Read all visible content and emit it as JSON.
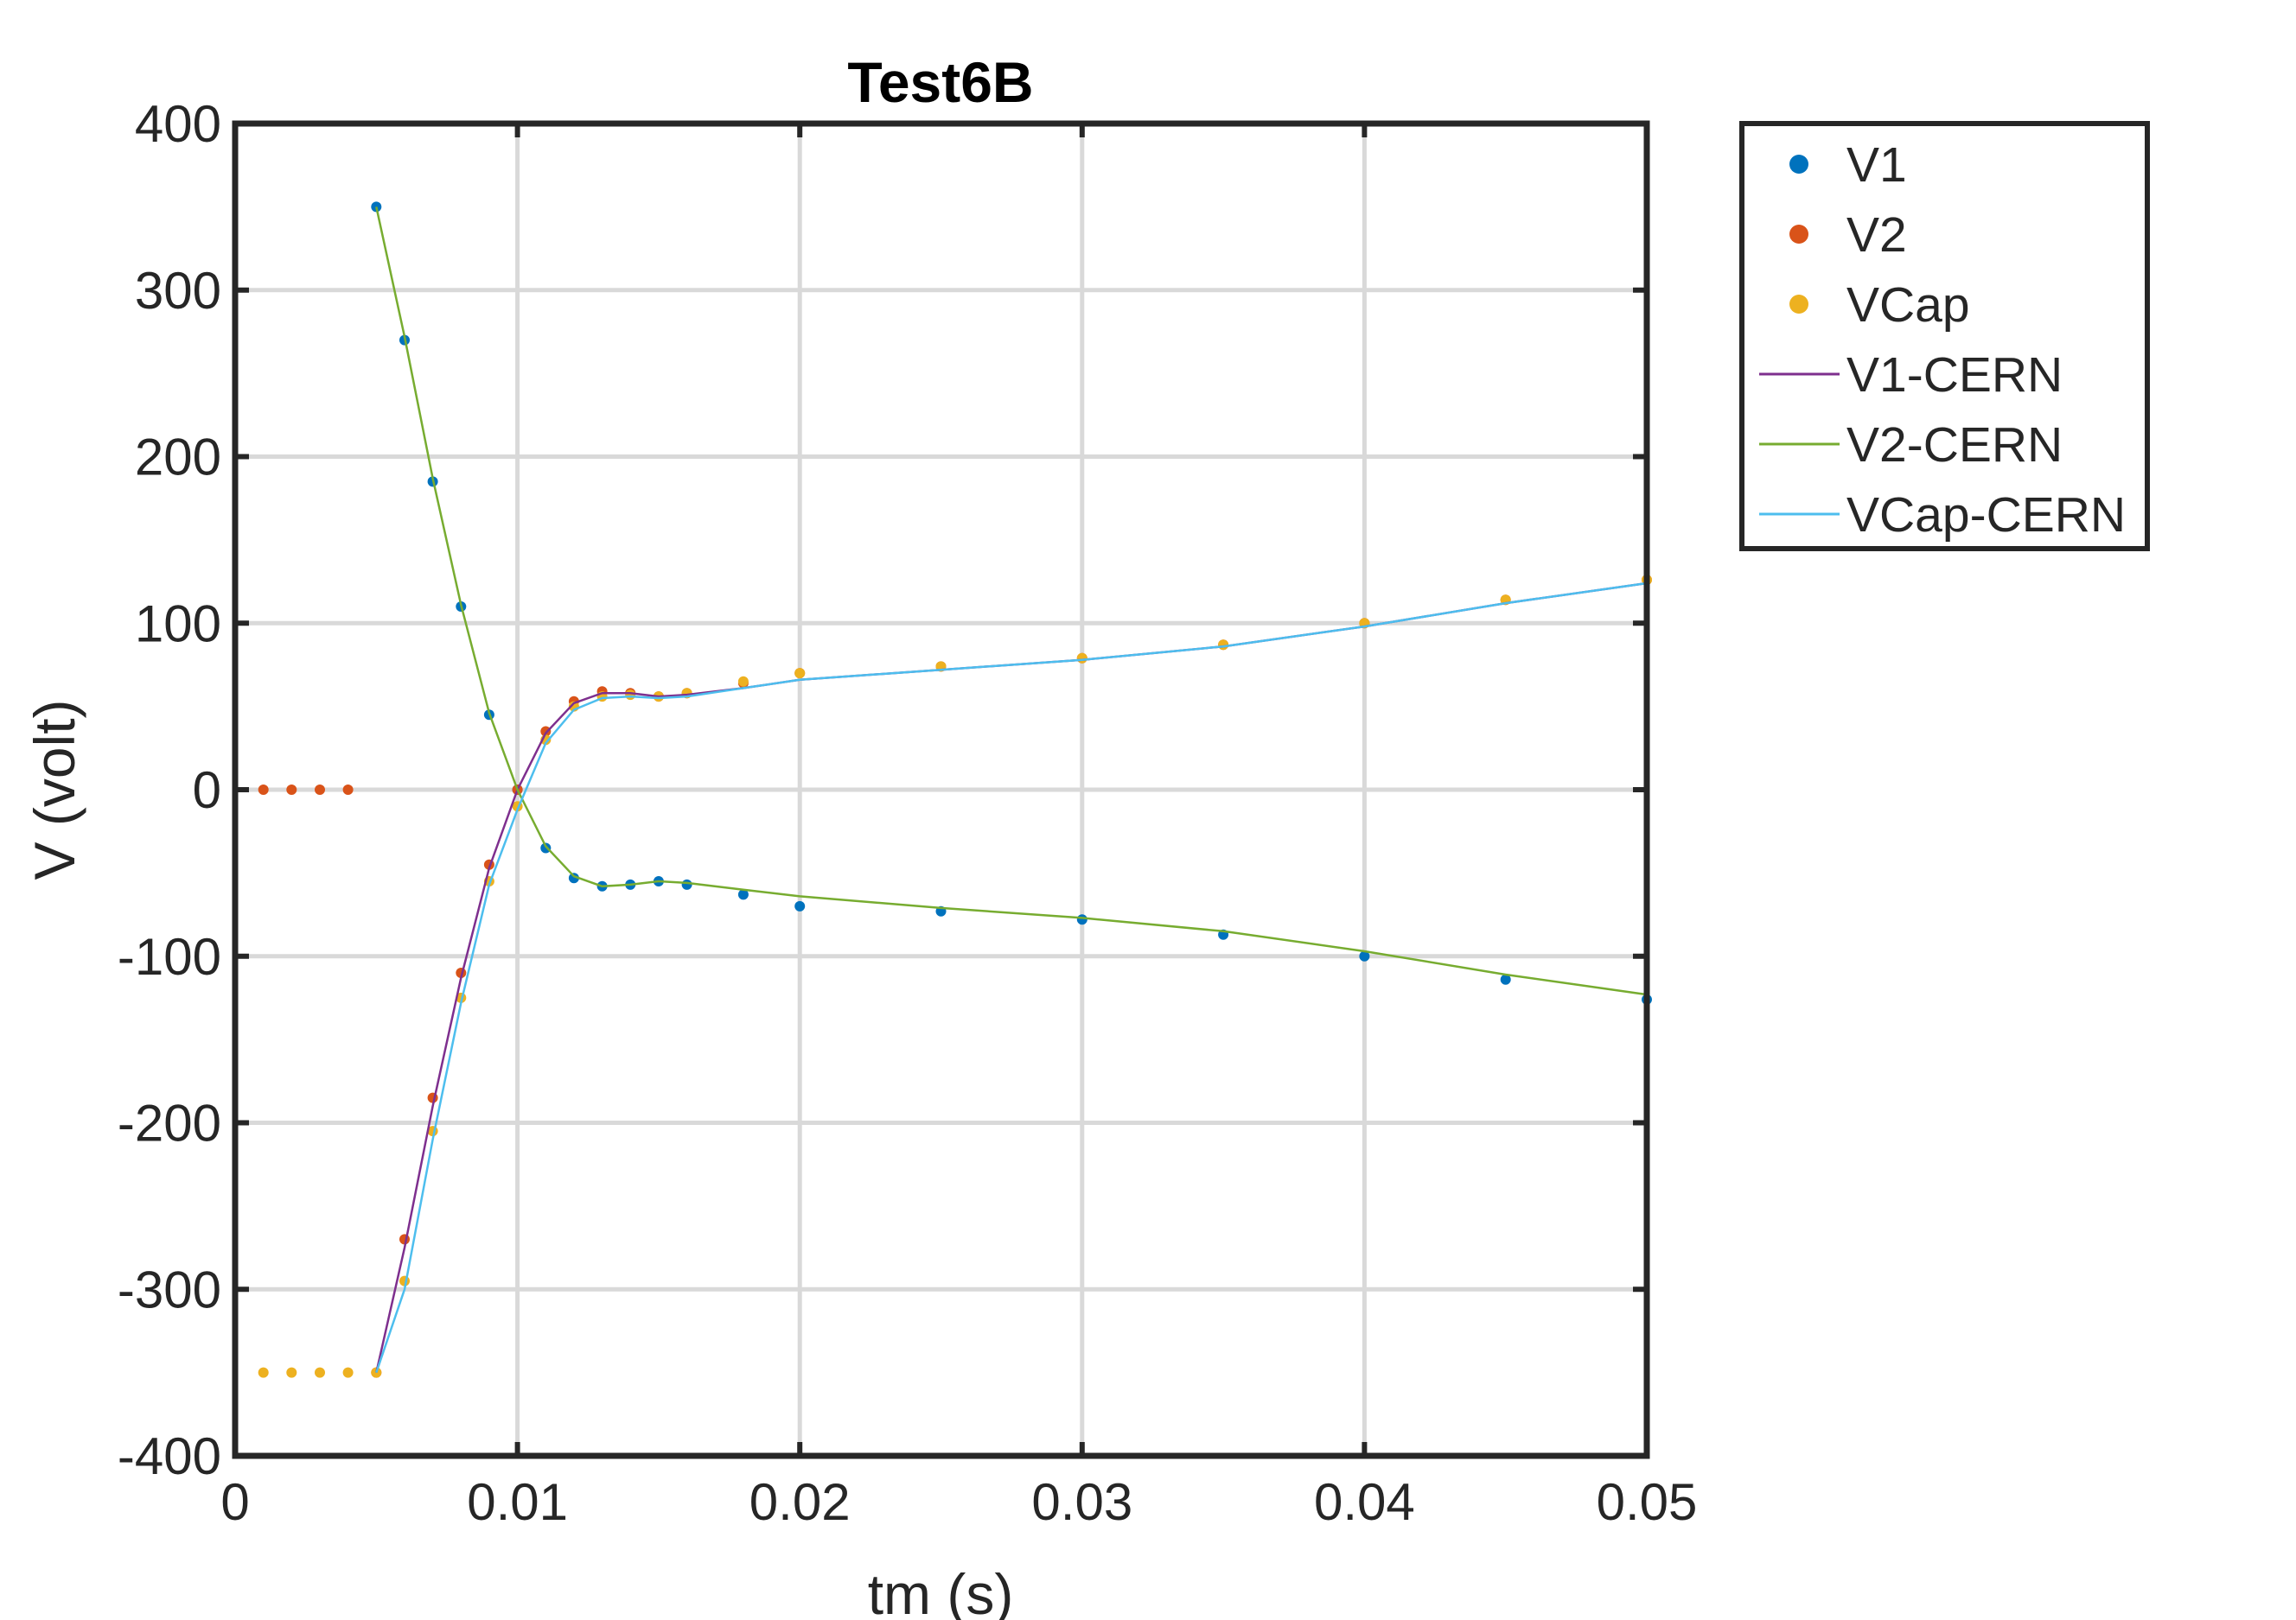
{
  "chart_data": {
    "type": "scatter",
    "title": "Test6B",
    "xlabel": "tm (s)",
    "ylabel": "V (volt)",
    "xlim": [
      0,
      0.05
    ],
    "ylim": [
      -400,
      400
    ],
    "xticks": [
      0,
      0.01,
      0.02,
      0.03,
      0.04,
      0.05
    ],
    "xtick_labels": [
      "0",
      "0.01",
      "0.02",
      "0.03",
      "0.04",
      "0.05"
    ],
    "yticks": [
      400,
      300,
      200,
      100,
      0,
      -100,
      -200,
      -300,
      -400
    ],
    "ytick_labels": [
      "400",
      "300",
      "200",
      "100",
      "0",
      "-100",
      "-200",
      "-300",
      "-400"
    ],
    "grid": true,
    "legend_position": "outside-top-right",
    "series": [
      {
        "name": "V1",
        "style": "dots",
        "color": "#0072BD",
        "x": [
          0.005,
          0.006,
          0.007,
          0.008,
          0.009,
          0.01,
          0.011,
          0.012,
          0.013,
          0.014,
          0.015,
          0.016,
          0.018,
          0.02,
          0.025,
          0.03,
          0.035,
          0.04,
          0.045,
          0.05
        ],
        "y": [
          350,
          270,
          185,
          110,
          45,
          0,
          -35,
          -53,
          -58,
          -57,
          -55,
          -57,
          -63,
          -70,
          -73,
          -78,
          -87,
          -100,
          -114,
          -126
        ]
      },
      {
        "name": "V2",
        "style": "dots",
        "color": "#D95319",
        "x": [
          0.001,
          0.002,
          0.003,
          0.004,
          0.005,
          0.006,
          0.007,
          0.008,
          0.009,
          0.01,
          0.011,
          0.012,
          0.013,
          0.014,
          0.015,
          0.016,
          0.018,
          0.02,
          0.025,
          0.03,
          0.035,
          0.04,
          0.045,
          0.05
        ],
        "y": [
          0,
          0,
          0,
          0,
          -350,
          -270,
          -185,
          -110,
          -45,
          0,
          35,
          53,
          59,
          58,
          56,
          58,
          64,
          70,
          74,
          79,
          87,
          100,
          114,
          126
        ]
      },
      {
        "name": "VCap",
        "style": "dots",
        "color": "#EDB120",
        "x": [
          0.001,
          0.002,
          0.003,
          0.004,
          0.005,
          0.006,
          0.007,
          0.008,
          0.009,
          0.01,
          0.011,
          0.012,
          0.013,
          0.014,
          0.015,
          0.016,
          0.018,
          0.02,
          0.025,
          0.03,
          0.035,
          0.04,
          0.045,
          0.05
        ],
        "y": [
          -350,
          -350,
          -350,
          -350,
          -350,
          -295,
          -205,
          -125,
          -55,
          -10,
          30,
          50,
          56,
          57,
          56,
          58,
          65,
          70,
          74,
          79,
          87,
          100,
          114,
          126
        ]
      },
      {
        "name": "V1-CERN",
        "style": "line",
        "color": "#7E2F8E",
        "x": [
          0.005,
          0.006,
          0.007,
          0.008,
          0.009,
          0.01,
          0.011,
          0.012,
          0.013,
          0.014,
          0.015,
          0.016,
          0.018,
          0.02,
          0.025,
          0.03,
          0.035,
          0.04,
          0.045,
          0.05
        ],
        "y": [
          -350,
          -275,
          -190,
          -113,
          -47,
          0,
          34,
          52,
          58,
          58,
          56,
          57,
          61,
          66,
          72,
          78,
          86,
          98,
          112,
          124
        ]
      },
      {
        "name": "V2-CERN",
        "style": "line",
        "color": "#77AC30",
        "x": [
          0.005,
          0.006,
          0.007,
          0.008,
          0.009,
          0.01,
          0.011,
          0.012,
          0.013,
          0.014,
          0.015,
          0.016,
          0.018,
          0.02,
          0.025,
          0.03,
          0.035,
          0.04,
          0.045,
          0.05
        ],
        "y": [
          350,
          272,
          187,
          111,
          46,
          0,
          -34,
          -52,
          -58,
          -57,
          -55,
          -56,
          -60,
          -64,
          -71,
          -77,
          -85,
          -97,
          -111,
          -123
        ]
      },
      {
        "name": "VCap-CERN",
        "style": "line",
        "color": "#4DBEEE",
        "x": [
          0.005,
          0.006,
          0.007,
          0.008,
          0.009,
          0.01,
          0.011,
          0.012,
          0.013,
          0.014,
          0.015,
          0.016,
          0.018,
          0.02,
          0.025,
          0.03,
          0.035,
          0.04,
          0.045,
          0.05
        ],
        "y": [
          -350,
          -300,
          -210,
          -128,
          -57,
          -12,
          28,
          48,
          55,
          56,
          55,
          56,
          61,
          66,
          72,
          78,
          86,
          98,
          112,
          124
        ]
      }
    ]
  }
}
